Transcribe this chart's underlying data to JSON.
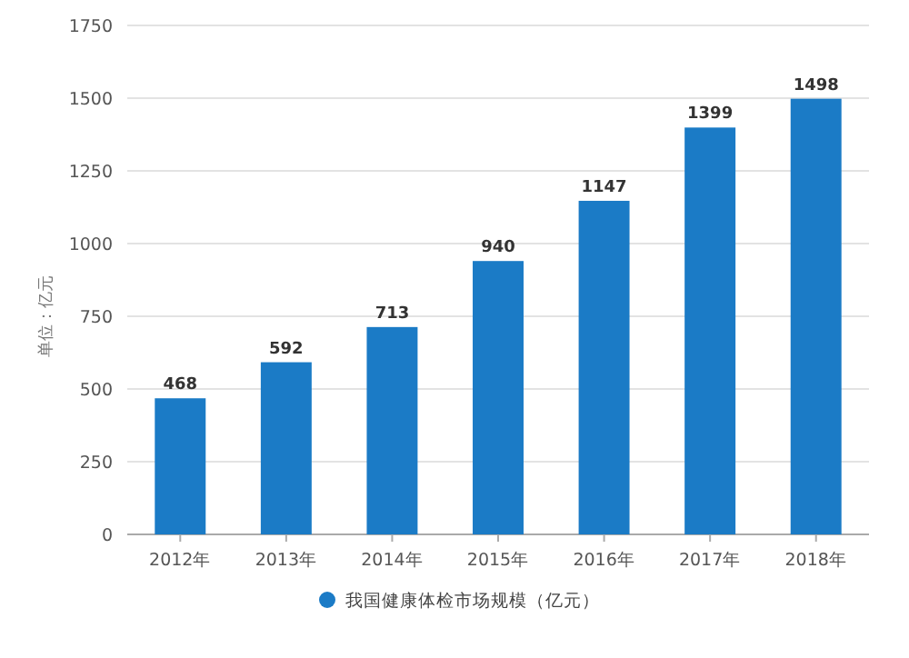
{
  "chart_data": {
    "type": "bar",
    "ylabel": "单位：亿元",
    "categories": [
      "2012年",
      "2013年",
      "2014年",
      "2015年",
      "2016年",
      "2017年",
      "2018年"
    ],
    "series": [
      {
        "name": "我国健康体检市场规模（亿元）",
        "color": "#1b7bc6",
        "values": [
          468,
          592,
          713,
          940,
          1147,
          1399,
          1498
        ]
      }
    ],
    "data_labels": true,
    "ylim": [
      0,
      1750
    ],
    "yticks": [
      0,
      250,
      500,
      750,
      1000,
      1250,
      1500,
      1750
    ],
    "grid": "y",
    "legend": "bottom"
  }
}
